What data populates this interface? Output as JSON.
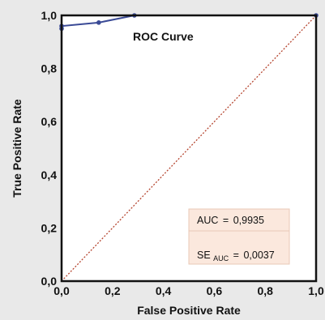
{
  "chart_data": {
    "type": "line",
    "xlabel": "False Positive Rate",
    "ylabel": "True Positive Rate",
    "xlim": [
      0,
      1
    ],
    "ylim": [
      0,
      1
    ],
    "x_ticks": [
      "0,0",
      "0,2",
      "0,4",
      "0,6",
      "0,8",
      "1,0"
    ],
    "y_ticks": [
      "0,0",
      "0,2",
      "0,4",
      "0,6",
      "0,8",
      "1,0"
    ],
    "annotation": "ROC Curve",
    "series": [
      {
        "type": "line",
        "color": "#3a4a96",
        "points": [
          {
            "x": 0.0,
            "y": 0.0
          },
          {
            "x": 0.0,
            "y": 0.95
          },
          {
            "x": 0.0,
            "y": 0.96
          },
          {
            "x": 0.146,
            "y": 0.973
          },
          {
            "x": 0.286,
            "y": 1.0
          },
          {
            "x": 1.0,
            "y": 1.0
          }
        ]
      },
      {
        "type": "reference",
        "color": "#b5452f",
        "style": "dotted",
        "points": [
          {
            "x": 0.0,
            "y": 0.0
          },
          {
            "x": 1.0,
            "y": 1.0
          }
        ]
      }
    ],
    "stats": {
      "auc_label": "AUC",
      "auc_value": "0,9935",
      "se_label": "SE",
      "se_subscript": "AUC",
      "se_value": "0,0037",
      "box_fill": "#fbe8dd",
      "box_stroke": "#e9c8b6"
    }
  }
}
